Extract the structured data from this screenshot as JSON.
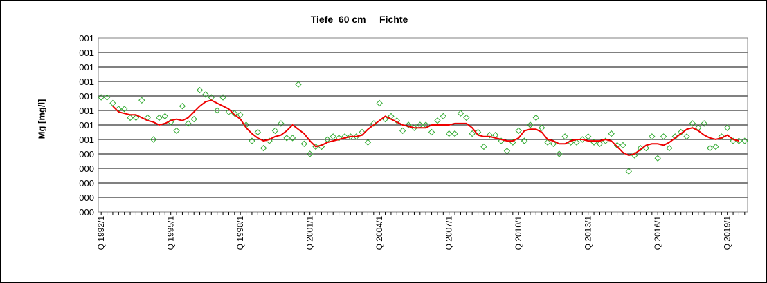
{
  "chart_data": {
    "type": "line",
    "title": "Tiefe  60 cm     Fichte",
    "ylabel": "Mg [mg/l]",
    "xlabel": "",
    "ytick_labels": [
      "000",
      "000",
      "000",
      "000",
      "000",
      "001",
      "001",
      "001",
      "001",
      "001",
      "001",
      "001",
      "001"
    ],
    "ylim": [
      0,
      12
    ],
    "xlim": [
      1991.875,
      2019.875
    ],
    "xticks": [
      {
        "label": "Q 1992/1",
        "x": 1992.0
      },
      {
        "label": "Q 1995/1",
        "x": 1995.0
      },
      {
        "label": "Q 1998/1",
        "x": 1998.0
      },
      {
        "label": "Q 2001/1",
        "x": 2001.0
      },
      {
        "label": "Q 2004/1",
        "x": 2004.0
      },
      {
        "label": "Q 2007/1",
        "x": 2007.0
      },
      {
        "label": "Q 2010/1",
        "x": 2010.0
      },
      {
        "label": "Q 2013/1",
        "x": 2013.0
      },
      {
        "label": "Q 2016/1",
        "x": 2016.0
      },
      {
        "label": "Q 2019/1",
        "x": 2019.0
      }
    ],
    "grid": true,
    "legend": "none",
    "series": [
      {
        "style": "markers",
        "color": "#33aa33",
        "marker": "diamond-open",
        "points": [
          [
            1992.0,
            7.9
          ],
          [
            1992.25,
            7.9
          ],
          [
            1992.5,
            7.5
          ],
          [
            1992.75,
            7.1
          ],
          [
            1993.0,
            7.1
          ],
          [
            1993.25,
            6.5
          ],
          [
            1993.5,
            6.5
          ],
          [
            1993.75,
            7.7
          ],
          [
            1994.0,
            6.5
          ],
          [
            1994.25,
            5.0
          ],
          [
            1994.5,
            6.5
          ],
          [
            1994.75,
            6.6
          ],
          [
            1995.0,
            6.2
          ],
          [
            1995.25,
            5.6
          ],
          [
            1995.5,
            7.3
          ],
          [
            1995.75,
            6.1
          ],
          [
            1996.0,
            6.4
          ],
          [
            1996.25,
            8.4
          ],
          [
            1996.5,
            8.1
          ],
          [
            1996.75,
            7.9
          ],
          [
            1997.0,
            7.0
          ],
          [
            1997.25,
            7.9
          ],
          [
            1997.5,
            6.9
          ],
          [
            1997.75,
            6.8
          ],
          [
            1998.0,
            6.7
          ],
          [
            1998.25,
            6.0
          ],
          [
            1998.5,
            4.9
          ],
          [
            1998.75,
            5.5
          ],
          [
            1999.0,
            4.4
          ],
          [
            1999.25,
            4.9
          ],
          [
            1999.5,
            5.6
          ],
          [
            1999.75,
            6.1
          ],
          [
            2000.0,
            5.1
          ],
          [
            2000.25,
            5.1
          ],
          [
            2000.5,
            8.8
          ],
          [
            2000.75,
            4.7
          ],
          [
            2001.0,
            4.0
          ],
          [
            2001.25,
            4.5
          ],
          [
            2001.5,
            4.5
          ],
          [
            2001.75,
            5.0
          ],
          [
            2002.0,
            5.2
          ],
          [
            2002.25,
            5.1
          ],
          [
            2002.5,
            5.2
          ],
          [
            2002.75,
            5.2
          ],
          [
            2003.0,
            5.2
          ],
          [
            2003.25,
            5.5
          ],
          [
            2003.5,
            4.8
          ],
          [
            2003.75,
            6.1
          ],
          [
            2004.0,
            7.5
          ],
          [
            2004.25,
            6.4
          ],
          [
            2004.5,
            6.6
          ],
          [
            2004.75,
            6.3
          ],
          [
            2005.0,
            5.6
          ],
          [
            2005.25,
            6.0
          ],
          [
            2005.5,
            5.8
          ],
          [
            2005.75,
            6.0
          ],
          [
            2006.0,
            6.0
          ],
          [
            2006.25,
            5.5
          ],
          [
            2006.5,
            6.3
          ],
          [
            2006.75,
            6.6
          ],
          [
            2007.0,
            5.4
          ],
          [
            2007.25,
            5.4
          ],
          [
            2007.5,
            6.8
          ],
          [
            2007.75,
            6.5
          ],
          [
            2008.0,
            5.4
          ],
          [
            2008.25,
            5.5
          ],
          [
            2008.5,
            4.5
          ],
          [
            2008.75,
            5.3
          ],
          [
            2009.0,
            5.3
          ],
          [
            2009.25,
            4.9
          ],
          [
            2009.5,
            4.2
          ],
          [
            2009.75,
            4.8
          ],
          [
            2010.0,
            5.6
          ],
          [
            2010.25,
            4.9
          ],
          [
            2010.5,
            6.0
          ],
          [
            2010.75,
            6.5
          ],
          [
            2010.25,
            4.9
          ],
          [
            2011.0,
            5.8
          ],
          [
            2011.25,
            4.8
          ],
          [
            2011.5,
            4.7
          ],
          [
            2011.75,
            4.0
          ],
          [
            2012.0,
            5.2
          ],
          [
            2012.25,
            4.8
          ],
          [
            2012.5,
            4.8
          ],
          [
            2012.75,
            5.0
          ],
          [
            2013.0,
            5.2
          ],
          [
            2013.25,
            4.8
          ],
          [
            2013.5,
            4.7
          ],
          [
            2013.75,
            4.9
          ],
          [
            2014.0,
            5.4
          ],
          [
            2014.25,
            4.6
          ],
          [
            2014.5,
            4.6
          ],
          [
            2014.75,
            2.8
          ],
          [
            2015.0,
            3.9
          ],
          [
            2015.25,
            4.4
          ],
          [
            2015.5,
            4.4
          ],
          [
            2015.75,
            5.2
          ],
          [
            2016.0,
            3.7
          ],
          [
            2016.25,
            5.2
          ],
          [
            2016.5,
            4.4
          ],
          [
            2016.75,
            5.2
          ],
          [
            2017.0,
            5.5
          ],
          [
            2017.25,
            5.2
          ],
          [
            2017.5,
            6.1
          ],
          [
            2017.75,
            5.8
          ],
          [
            2018.0,
            6.1
          ],
          [
            2018.25,
            4.4
          ],
          [
            2018.5,
            4.5
          ],
          [
            2018.75,
            5.2
          ],
          [
            2019.0,
            5.8
          ],
          [
            2019.25,
            4.9
          ],
          [
            2019.5,
            4.9
          ],
          [
            2019.75,
            4.9
          ]
        ]
      },
      {
        "style": "line",
        "color": "#ee0000",
        "points": [
          [
            1992.5,
            7.3
          ],
          [
            1992.75,
            6.9
          ],
          [
            1993.0,
            6.8
          ],
          [
            1993.25,
            6.7
          ],
          [
            1993.5,
            6.7
          ],
          [
            1993.75,
            6.5
          ],
          [
            1994.0,
            6.3
          ],
          [
            1994.25,
            6.2
          ],
          [
            1994.5,
            6.0
          ],
          [
            1994.75,
            6.1
          ],
          [
            1995.0,
            6.3
          ],
          [
            1995.25,
            6.4
          ],
          [
            1995.5,
            6.3
          ],
          [
            1995.75,
            6.5
          ],
          [
            1996.0,
            6.9
          ],
          [
            1996.25,
            7.3
          ],
          [
            1996.5,
            7.6
          ],
          [
            1996.75,
            7.7
          ],
          [
            1997.0,
            7.5
          ],
          [
            1997.25,
            7.3
          ],
          [
            1997.5,
            7.1
          ],
          [
            1997.75,
            6.7
          ],
          [
            1998.0,
            6.4
          ],
          [
            1998.25,
            5.8
          ],
          [
            1998.5,
            5.4
          ],
          [
            1998.75,
            5.1
          ],
          [
            1999.0,
            4.9
          ],
          [
            1999.25,
            5.0
          ],
          [
            1999.5,
            5.2
          ],
          [
            1999.75,
            5.3
          ],
          [
            2000.0,
            5.6
          ],
          [
            2000.25,
            6.0
          ],
          [
            2000.5,
            5.7
          ],
          [
            2000.75,
            5.4
          ],
          [
            2001.0,
            4.9
          ],
          [
            2001.25,
            4.5
          ],
          [
            2001.5,
            4.6
          ],
          [
            2001.75,
            4.8
          ],
          [
            2002.0,
            4.9
          ],
          [
            2002.25,
            5.0
          ],
          [
            2002.5,
            5.1
          ],
          [
            2002.75,
            5.2
          ],
          [
            2003.0,
            5.2
          ],
          [
            2003.25,
            5.3
          ],
          [
            2003.5,
            5.7
          ],
          [
            2003.75,
            6.0
          ],
          [
            2004.0,
            6.3
          ],
          [
            2004.25,
            6.6
          ],
          [
            2004.5,
            6.4
          ],
          [
            2004.75,
            6.2
          ],
          [
            2005.0,
            6.0
          ],
          [
            2005.25,
            5.9
          ],
          [
            2005.5,
            5.8
          ],
          [
            2005.75,
            5.8
          ],
          [
            2006.0,
            5.8
          ],
          [
            2006.25,
            6.0
          ],
          [
            2006.5,
            6.0
          ],
          [
            2006.75,
            6.0
          ],
          [
            2007.0,
            6.0
          ],
          [
            2007.25,
            6.1
          ],
          [
            2007.5,
            6.1
          ],
          [
            2007.75,
            6.1
          ],
          [
            2008.0,
            5.8
          ],
          [
            2008.25,
            5.3
          ],
          [
            2008.5,
            5.2
          ],
          [
            2008.75,
            5.2
          ],
          [
            2009.0,
            5.1
          ],
          [
            2009.25,
            5.0
          ],
          [
            2009.5,
            4.9
          ],
          [
            2009.75,
            4.9
          ],
          [
            2010.0,
            5.1
          ],
          [
            2010.25,
            5.6
          ],
          [
            2010.5,
            5.7
          ],
          [
            2010.75,
            5.7
          ],
          [
            2011.0,
            5.5
          ],
          [
            2011.25,
            5.0
          ],
          [
            2011.5,
            4.9
          ],
          [
            2011.75,
            4.7
          ],
          [
            2012.0,
            4.7
          ],
          [
            2012.25,
            4.9
          ],
          [
            2012.5,
            5.0
          ],
          [
            2012.75,
            5.0
          ],
          [
            2013.0,
            4.9
          ],
          [
            2013.25,
            4.9
          ],
          [
            2013.5,
            4.9
          ],
          [
            2013.75,
            5.0
          ],
          [
            2014.0,
            4.9
          ],
          [
            2014.25,
            4.5
          ],
          [
            2014.5,
            4.1
          ],
          [
            2014.75,
            3.9
          ],
          [
            2015.0,
            4.0
          ],
          [
            2015.25,
            4.3
          ],
          [
            2015.5,
            4.6
          ],
          [
            2015.75,
            4.7
          ],
          [
            2016.0,
            4.7
          ],
          [
            2016.25,
            4.6
          ],
          [
            2016.5,
            4.8
          ],
          [
            2016.75,
            5.1
          ],
          [
            2017.0,
            5.4
          ],
          [
            2017.25,
            5.7
          ],
          [
            2017.5,
            5.8
          ],
          [
            2017.75,
            5.6
          ],
          [
            2018.0,
            5.3
          ],
          [
            2018.25,
            5.1
          ],
          [
            2018.5,
            5.0
          ],
          [
            2018.75,
            5.1
          ],
          [
            2019.0,
            5.3
          ],
          [
            2019.25,
            5.0
          ],
          [
            2019.5,
            4.9
          ]
        ]
      }
    ]
  }
}
